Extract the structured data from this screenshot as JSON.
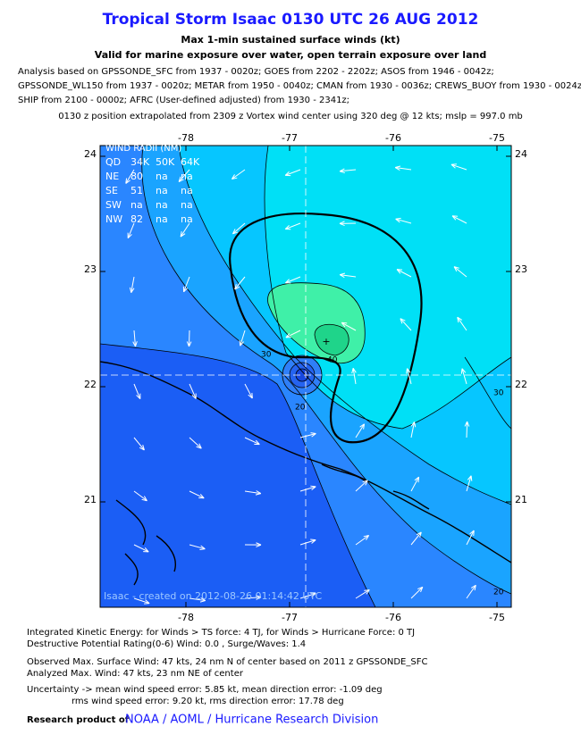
{
  "header": {
    "title": "Tropical Storm Isaac 0130 UTC 26 AUG 2012",
    "subtitle1": "Max 1-min sustained surface winds (kt)",
    "subtitle2": "Valid for marine exposure over water, open terrain exposure over land"
  },
  "analysis_lines": [
    "Analysis based on GPSSONDE_SFC from 1937 - 0020z; GOES from 2202 - 2202z; ASOS from 1946 - 0042z;",
    "GPSSONDE_WL150 from 1937 - 0020z; METAR from 1950 - 0040z; CMAN from 1930 - 0036z; CREWS_BUOY from 1930 - 0024z;",
    "SHIP from 2100 - 0000z; AFRC (User-defined adjusted) from 1930 - 2341z;"
  ],
  "position_note": "0130 z position extrapolated from 2309 z Vortex wind center using 320 deg @ 12 kts; mslp = 997.0 mb",
  "map": {
    "lon_ticks": [
      -78,
      -77,
      -76,
      -75
    ],
    "lat_ticks": [
      24,
      23,
      22,
      21
    ],
    "wind_radii": {
      "title": "WIND RADII (NM)",
      "header": [
        "QD",
        "34K",
        "50K",
        "64K"
      ],
      "rows": [
        [
          "NE",
          "80",
          "na",
          "na"
        ],
        [
          "SE",
          "51",
          "na",
          "na"
        ],
        [
          "SW",
          "na",
          "na",
          "na"
        ],
        [
          "NW",
          "82",
          "na",
          "na"
        ]
      ]
    },
    "contour_labels": [
      "30",
      "40",
      "20",
      "30",
      "20"
    ],
    "credit": "Isaac - created on 2012-08-26 01:14:42 UTC"
  },
  "footer": {
    "lines": [
      "Integrated Kinetic Energy: for Winds > TS force: 4 TJ, for Winds > Hurricane Force: 0 TJ",
      "Destructive Potential Rating(0-6)  Wind: 0.0 , Surge/Waves: 1.4",
      "Observed Max. Surface Wind: 47 kts, 24 nm N of center based on 2011 z GPSSONDE_SFC",
      "Analyzed Max. Wind: 47 kts, 23 nm  NE of center",
      "Uncertainty -> mean wind speed error: 5.85 kt, mean direction error:  -1.09 deg",
      "rms wind speed error: 9.20 kt, rms direction error: 17.78 deg"
    ],
    "research_prefix": "Research product of",
    "org": "NOAA / AOML / Hurricane Research Division"
  }
}
